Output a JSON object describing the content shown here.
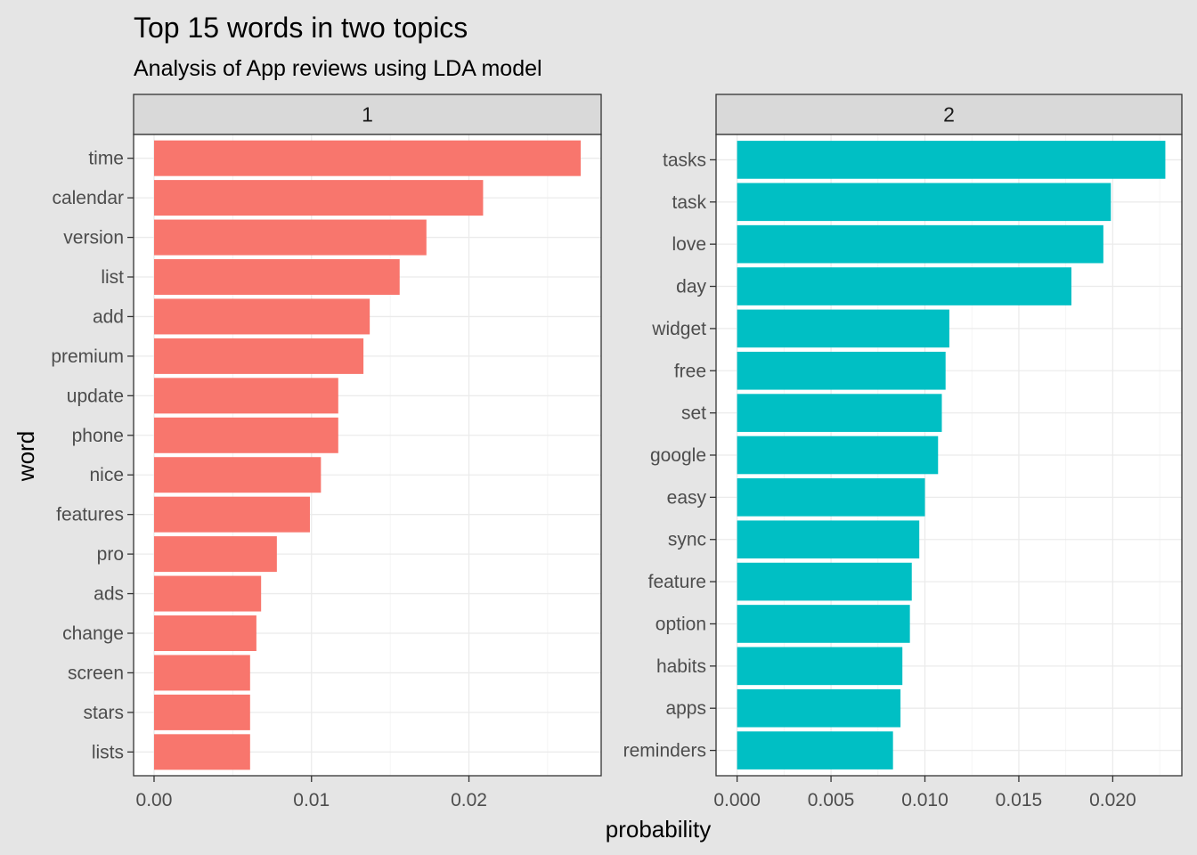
{
  "chart_data": {
    "type": "bar",
    "orientation": "horizontal",
    "title": "Top 15 words in two topics",
    "subtitle": "Analysis of App reviews using LDA model",
    "xlabel": "probability",
    "ylabel": "word",
    "grid": true,
    "legend": "none",
    "facets": [
      {
        "label": "1",
        "color": "#F8766D",
        "xlim": [
          -0.0013,
          0.0284
        ],
        "x_ticks": [
          0.0,
          0.01,
          0.02
        ],
        "x_tick_labels": [
          "0.00",
          "0.01",
          "0.02"
        ],
        "categories": [
          "time",
          "calendar",
          "version",
          "list",
          "add",
          "premium",
          "update",
          "phone",
          "nice",
          "features",
          "pro",
          "ads",
          "change",
          "screen",
          "stars",
          "lists"
        ],
        "values": [
          0.0271,
          0.0209,
          0.0173,
          0.0156,
          0.0137,
          0.0133,
          0.0117,
          0.0117,
          0.0106,
          0.0099,
          0.0078,
          0.0068,
          0.0065,
          0.0061,
          0.0061,
          0.0061
        ]
      },
      {
        "label": "2",
        "color": "#00BFC4",
        "xlim": [
          -0.00112,
          0.02368
        ],
        "x_ticks": [
          0.0,
          0.005,
          0.01,
          0.015,
          0.02
        ],
        "x_tick_labels": [
          "0.000",
          "0.005",
          "0.010",
          "0.015",
          "0.020"
        ],
        "categories": [
          "tasks",
          "task",
          "love",
          "day",
          "widget",
          "free",
          "set",
          "google",
          "easy",
          "sync",
          "feature",
          "option",
          "habits",
          "apps",
          "reminders"
        ],
        "values": [
          0.0228,
          0.0199,
          0.0195,
          0.0178,
          0.0113,
          0.0111,
          0.0109,
          0.0107,
          0.01,
          0.0097,
          0.0093,
          0.0092,
          0.0088,
          0.0087,
          0.0083
        ]
      }
    ]
  }
}
